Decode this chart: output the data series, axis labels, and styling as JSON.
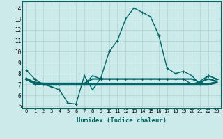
{
  "xlabel": "Humidex (Indice chaleur)",
  "background_color": "#cceaea",
  "grid_color": "#aad4d4",
  "line_color": "#006666",
  "xlim": [
    -0.5,
    23.5
  ],
  "ylim": [
    4.8,
    14.6
  ],
  "yticks": [
    5,
    6,
    7,
    8,
    9,
    10,
    11,
    12,
    13,
    14
  ],
  "xticks": [
    0,
    1,
    2,
    3,
    4,
    5,
    6,
    7,
    8,
    9,
    10,
    11,
    12,
    13,
    14,
    15,
    16,
    17,
    18,
    19,
    20,
    21,
    22,
    23
  ],
  "xtick_labels": [
    "0",
    "1",
    "2",
    "3",
    "4",
    "5",
    "6",
    "7",
    "8",
    "9",
    "10",
    "11",
    "12",
    "13",
    "14",
    "15",
    "16",
    "17",
    "18",
    "19",
    "20",
    "21",
    "22",
    "23"
  ],
  "series": [
    {
      "y": [
        8.3,
        7.5,
        7.0,
        6.8,
        6.5,
        5.3,
        5.2,
        7.8,
        6.5,
        7.6,
        10.0,
        11.0,
        13.0,
        14.0,
        13.6,
        13.2,
        11.5,
        8.5,
        8.0,
        8.2,
        7.8,
        7.0,
        7.8,
        7.5
      ],
      "lw": 1.0,
      "marker": "+"
    },
    {
      "y": [
        7.5,
        7.2,
        7.1,
        7.1,
        7.1,
        7.1,
        7.1,
        7.1,
        7.5,
        7.5,
        7.5,
        7.5,
        7.5,
        7.5,
        7.5,
        7.5,
        7.5,
        7.5,
        7.5,
        7.5,
        7.5,
        7.2,
        7.5,
        7.3
      ],
      "lw": 1.5,
      "marker": null
    },
    {
      "y": [
        7.5,
        7.1,
        7.0,
        7.0,
        7.0,
        7.0,
        7.0,
        7.0,
        7.0,
        7.0,
        7.0,
        7.0,
        7.0,
        7.0,
        7.0,
        7.0,
        7.0,
        7.0,
        7.0,
        7.0,
        7.0,
        7.0,
        7.0,
        7.2
      ],
      "lw": 2.5,
      "marker": null
    },
    {
      "y": [
        7.5,
        7.0,
        7.0,
        7.0,
        7.0,
        7.0,
        7.0,
        7.0,
        7.8,
        7.5,
        7.5,
        7.5,
        7.5,
        7.5,
        7.5,
        7.5,
        7.5,
        7.5,
        7.5,
        7.5,
        7.0,
        7.3,
        7.8,
        7.5
      ],
      "lw": 1.0,
      "marker": "+"
    }
  ]
}
